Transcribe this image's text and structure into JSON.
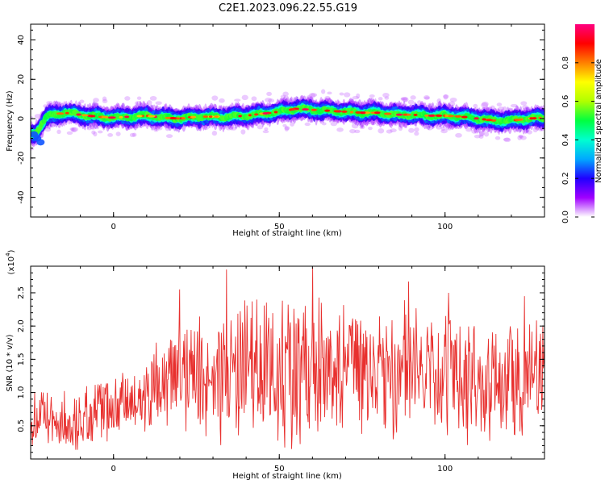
{
  "figure_title": "C2E1.2023.096.22.55.G19",
  "chart_data": [
    {
      "type": "heatmap",
      "title": "",
      "xlabel": "Height of straight line (km)",
      "ylabel": "Frequency (Hz)",
      "xlim": [
        -25,
        130
      ],
      "ylim": [
        -50,
        48
      ],
      "xticks": [
        0,
        50,
        100
      ],
      "yticks": [
        -40,
        -20,
        0,
        20,
        40
      ],
      "ridge": {
        "x": [
          -24,
          -20,
          -15,
          -10,
          -5,
          0,
          5,
          10,
          15,
          20,
          25,
          30,
          35,
          40,
          45,
          50,
          55,
          60,
          65,
          70,
          75,
          80,
          85,
          90,
          95,
          100,
          105,
          110,
          115,
          120,
          125,
          130
        ],
        "center": [
          -8,
          1,
          3,
          2,
          1,
          0.5,
          1,
          1.5,
          0.5,
          0,
          1,
          1,
          1,
          1.5,
          2.5,
          3.5,
          5,
          4.5,
          4,
          3.5,
          3,
          3,
          2,
          2,
          1.5,
          1.5,
          1,
          0,
          -1,
          -1,
          0,
          0.5
        ]
      },
      "colorbar": {
        "label": "Normalized spectral amplitude",
        "range": [
          0,
          1
        ],
        "ticks": [
          0.0,
          0.2,
          0.4,
          0.6,
          0.8
        ],
        "colors": [
          "#ffffff",
          "#a000ff",
          "#2000ff",
          "#00a8ff",
          "#00ffd0",
          "#00ff40",
          "#b0ff00",
          "#ffff00",
          "#ff8000",
          "#ff0000",
          "#ff0080"
        ]
      }
    },
    {
      "type": "line",
      "title": "",
      "xlabel": "Height of straight line (km)",
      "ylabel": "SNR (10 * v/v)",
      "scale_label": "(x10",
      "scale_exp": "4",
      "scale_close": ")",
      "xlim": [
        -25,
        130
      ],
      "ylim": [
        0,
        2.9
      ],
      "xticks": [
        0,
        50,
        100
      ],
      "yticks": [
        0.5,
        1.0,
        1.5,
        2.0,
        2.5
      ],
      "ytick_labels": [
        "0.5",
        "1.0",
        "1.5",
        "2.0",
        "2.5"
      ],
      "color": "#e8302e",
      "envelope": {
        "x": [
          -25,
          -10,
          -5,
          0,
          5,
          10,
          15,
          20,
          30,
          40,
          50,
          60,
          70,
          80,
          90,
          100,
          110,
          120,
          125,
          130
        ],
        "mean": [
          0.6,
          0.55,
          0.75,
          0.8,
          0.8,
          0.9,
          1.1,
          1.2,
          1.3,
          1.3,
          1.35,
          1.35,
          1.3,
          1.3,
          1.3,
          1.2,
          1.2,
          1.15,
          1.15,
          1.2
        ],
        "amp": [
          0.45,
          0.45,
          0.5,
          0.55,
          0.5,
          0.6,
          0.75,
          0.9,
          1.05,
          1.1,
          1.2,
          1.25,
          1.1,
          1.05,
          1.0,
          0.95,
          0.95,
          0.9,
          0.9,
          0.85
        ]
      },
      "peaks": [
        {
          "x": 20,
          "y": 2.55
        },
        {
          "x": 34,
          "y": 2.85
        },
        {
          "x": 60,
          "y": 2.88
        },
        {
          "x": 89,
          "y": 2.67
        },
        {
          "x": 101,
          "y": 2.5
        },
        {
          "x": 124,
          "y": 2.45
        }
      ]
    }
  ]
}
